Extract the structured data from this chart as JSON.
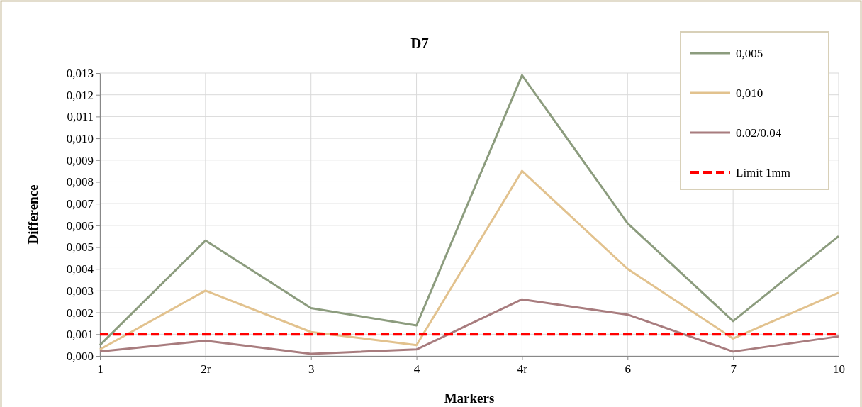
{
  "chart_data": {
    "type": "line",
    "title": "D7",
    "xlabel": "Markers",
    "ylabel": "Difference",
    "categories": [
      "1",
      "2r",
      "3",
      "4",
      "4r",
      "6",
      "7",
      "10"
    ],
    "series": [
      {
        "name": "0,005",
        "color": "#8c9c7e",
        "values": [
          0.0005,
          0.0053,
          0.0022,
          0.0014,
          0.0129,
          0.0061,
          0.0016,
          0.0055
        ]
      },
      {
        "name": "0,010",
        "color": "#e2c28e",
        "values": [
          0.0003,
          0.003,
          0.0011,
          0.0005,
          0.0085,
          0.004,
          0.0008,
          0.0029
        ]
      },
      {
        "name": "0.02/0.04",
        "color": "#a87c7e",
        "values": [
          0.0002,
          0.0007,
          0.0001,
          0.0003,
          0.0026,
          0.0019,
          0.0002,
          0.0009
        ]
      },
      {
        "name": "Limit 1mm",
        "color": "#ff0000",
        "line_style": "dashed",
        "values": [
          0.001,
          0.001,
          0.001,
          0.001,
          0.001,
          0.001,
          0.001,
          0.001
        ]
      }
    ],
    "ylim": [
      0,
      0.013
    ],
    "yticks": [
      {
        "value": 0,
        "label": "0,000"
      },
      {
        "value": 0.001,
        "label": "0,001"
      },
      {
        "value": 0.002,
        "label": "0,002"
      },
      {
        "value": 0.003,
        "label": "0,003"
      },
      {
        "value": 0.004,
        "label": "0,004"
      },
      {
        "value": 0.005,
        "label": "0,005"
      },
      {
        "value": 0.006,
        "label": "0,006"
      },
      {
        "value": 0.007,
        "label": "0,007"
      },
      {
        "value": 0.008,
        "label": "0,008"
      },
      {
        "value": 0.009,
        "label": "0,009"
      },
      {
        "value": 0.01,
        "label": "0,010"
      },
      {
        "value": 0.011,
        "label": "0,011"
      },
      {
        "value": 0.012,
        "label": "0,012"
      },
      {
        "value": 0.013,
        "label": "0,013"
      }
    ],
    "grid": true,
    "legend": "top right",
    "line_style": "solid",
    "marker": "none"
  }
}
